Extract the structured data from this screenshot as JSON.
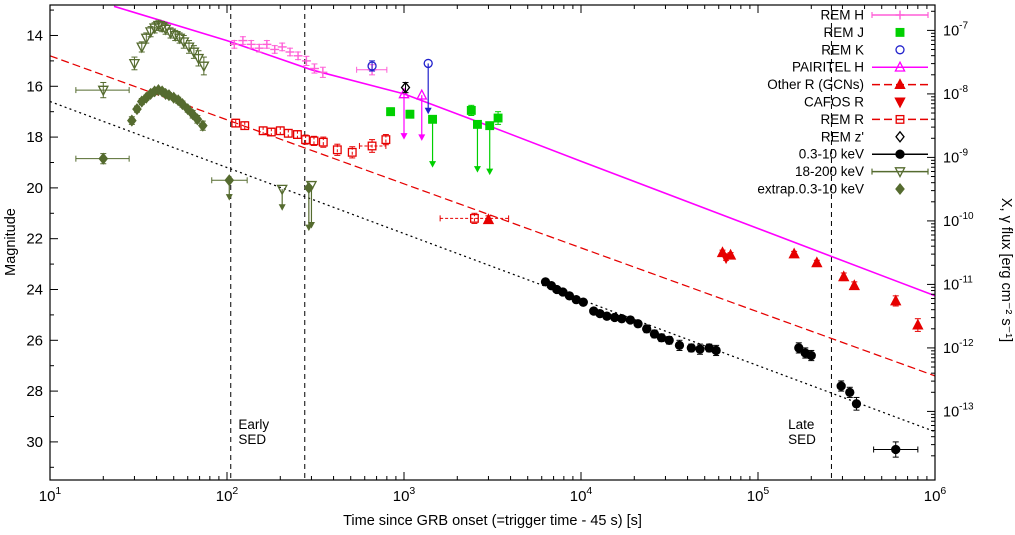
{
  "chart_data": {
    "type": "scatter",
    "title": "",
    "xlabel": "Time since GRB onset (=trigger time - 45 s) [s]",
    "ylabel_left": "Magnitude",
    "ylabel_right": "X, γ flux [erg cm⁻² s⁻¹]",
    "x_log_range": [
      1,
      6
    ],
    "y_mag_range": [
      12.8,
      31.5
    ],
    "x_tick_exponents": [
      1,
      2,
      3,
      4,
      5,
      6
    ],
    "y_ticks": [
      14,
      16,
      18,
      20,
      22,
      24,
      26,
      28,
      30
    ],
    "right_axis": {
      "tick_exponents": [
        -7,
        -8,
        -9,
        -10,
        -11,
        -12,
        -13
      ],
      "mag_ref": 13.8,
      "mag_per_decade": 2.5
    },
    "vlines": [
      {
        "t": 105
      },
      {
        "t": 275
      },
      {
        "t": 260000
      }
    ],
    "annotations": [
      {
        "lines": [
          "Early",
          "SED"
        ],
        "t": 116,
        "mag": 29.5
      },
      {
        "lines": [
          "Late",
          "SED"
        ],
        "t": 148000,
        "mag": 29.5
      }
    ],
    "fit_lines": [
      {
        "name": "H-band power-law fit",
        "color": "#ff00ff",
        "style": "solid",
        "points": [
          [
            23,
            12.85
          ],
          [
            100,
            14.2
          ],
          [
            300,
            15.35
          ],
          [
            1000,
            16.3
          ],
          [
            3000,
            17.55
          ],
          [
            10000,
            18.95
          ],
          [
            100000,
            21.6
          ],
          [
            1000000,
            24.25
          ]
        ]
      },
      {
        "name": "R-band power-law fit",
        "color": "#e60000",
        "style": "dashed",
        "points": [
          [
            10,
            14.8
          ],
          [
            1000000,
            27.4
          ]
        ]
      },
      {
        "name": "X-ray extrapolation",
        "color": "#000000",
        "style": "dotted",
        "points": [
          [
            10,
            16.6
          ],
          [
            1000000,
            29.6
          ]
        ]
      }
    ],
    "series": [
      {
        "name": "REM H",
        "slug": "rem-h",
        "marker": "plus",
        "filled": false,
        "color": "#ff5fd7",
        "err": "solid",
        "points": [
          [
            110,
            14.35,
            0.15
          ],
          [
            123,
            14.2,
            0.15
          ],
          [
            137,
            14.35,
            0.15
          ],
          [
            152,
            14.5,
            0.15
          ],
          [
            168,
            14.35,
            0.15
          ],
          [
            186,
            14.55,
            0.15
          ],
          [
            205,
            14.45,
            0.15
          ],
          [
            227,
            14.65,
            0.15
          ],
          [
            252,
            14.8,
            0.15
          ],
          [
            281,
            15.0,
            0.18
          ],
          [
            312,
            15.3,
            0.18
          ],
          [
            348,
            15.45,
            0.2
          ],
          [
            660,
            15.35,
            0.2,
            540,
            800
          ]
        ],
        "upper_limits": []
      },
      {
        "name": "REM J",
        "slug": "rem-j",
        "marker": "square",
        "filled": true,
        "color": "#00d000",
        "err": "solid",
        "points": [
          [
            840,
            17.0,
            0.15
          ],
          [
            1080,
            17.1,
            0.15
          ],
          [
            2400,
            16.95,
            0.2
          ],
          [
            3400,
            17.25,
            0.25
          ]
        ],
        "upper_limits": [
          [
            1450,
            17.3,
            19.2
          ],
          [
            2600,
            17.5,
            19.4
          ],
          [
            3050,
            17.55,
            19.5
          ]
        ]
      },
      {
        "name": "REM K",
        "slug": "rem-k",
        "marker": "circle",
        "filled": false,
        "color": "#2121cc",
        "err": "solid",
        "points": [
          [
            660,
            15.2,
            0.2
          ]
        ],
        "upper_limits": [
          [
            1370,
            15.1,
            17.1
          ]
        ]
      },
      {
        "name": "PAIRITEL H",
        "slug": "pairitel-h",
        "marker": "triangle-up",
        "filled": false,
        "color": "#ff00ff",
        "err": "solid",
        "points": [],
        "upper_limits": [
          [
            1000,
            16.3,
            18.1
          ],
          [
            1260,
            16.35,
            18.15
          ]
        ]
      },
      {
        "name": "Other R (GCNs)",
        "slug": "other-r-gcns",
        "marker": "triangle-up",
        "filled": true,
        "color": "#e60000",
        "err": "solid",
        "points": [
          [
            3000,
            21.25,
            0.15
          ],
          [
            63000,
            22.55,
            0.1
          ],
          [
            70000,
            22.65,
            0.1
          ],
          [
            160000,
            22.6,
            0.1
          ],
          [
            215000,
            22.95,
            0.1
          ],
          [
            305000,
            23.5,
            0.15
          ],
          [
            350000,
            23.85,
            0.15
          ],
          [
            600000,
            24.45,
            0.2
          ],
          [
            800000,
            25.4,
            0.25
          ]
        ],
        "upper_limits": []
      },
      {
        "name": "CAFOS R",
        "slug": "cafos-r",
        "marker": "triangle-down",
        "filled": true,
        "color": "#e60000",
        "err": "solid",
        "points": [
          [
            66000,
            22.75,
            0.1
          ]
        ],
        "upper_limits": []
      },
      {
        "name": "REM R",
        "slug": "rem-r",
        "marker": "square",
        "filled": false,
        "color": "#e60000",
        "err": "dashed",
        "points": [
          [
            112,
            17.45,
            0.15
          ],
          [
            126,
            17.55,
            0.15
          ],
          [
            160,
            17.75,
            0.15
          ],
          [
            178,
            17.8,
            0.15
          ],
          [
            200,
            17.75,
            0.15
          ],
          [
            222,
            17.85,
            0.15
          ],
          [
            250,
            17.9,
            0.15
          ],
          [
            278,
            18.1,
            0.18
          ],
          [
            310,
            18.15,
            0.18
          ],
          [
            350,
            18.2,
            0.2
          ],
          [
            420,
            18.5,
            0.22
          ],
          [
            510,
            18.6,
            0.22
          ],
          [
            660,
            18.35,
            0.25,
            560,
            790
          ],
          [
            790,
            18.1,
            0.2
          ],
          [
            2500,
            21.2,
            0.2,
            1600,
            3900
          ]
        ],
        "upper_limits": []
      },
      {
        "name": "REM z'",
        "slug": "rem-z",
        "marker": "diamond",
        "filled": false,
        "color": "#000000",
        "err": "solid",
        "points": [
          [
            1020,
            16.05,
            0.2
          ]
        ],
        "upper_limits": []
      },
      {
        "name": "0.3-10 keV",
        "slug": "xray-03-10-kev",
        "marker": "circle",
        "filled": true,
        "color": "#000000",
        "err": "solid",
        "points": [
          [
            6300,
            23.7,
            0.1
          ],
          [
            6800,
            23.85,
            0.1
          ],
          [
            7300,
            24.0,
            0.1
          ],
          [
            7900,
            24.1,
            0.1
          ],
          [
            8600,
            24.25,
            0.1
          ],
          [
            9400,
            24.4,
            0.12
          ],
          [
            10300,
            24.5,
            0.12
          ],
          [
            11800,
            24.85,
            0.12
          ],
          [
            12800,
            24.95,
            0.12
          ],
          [
            14000,
            25.05,
            0.12
          ],
          [
            15500,
            25.1,
            0.12
          ],
          [
            17000,
            25.15,
            0.12
          ],
          [
            19000,
            25.2,
            0.12
          ],
          [
            21000,
            25.35,
            0.12
          ],
          [
            23500,
            25.55,
            0.15
          ],
          [
            26000,
            25.75,
            0.15
          ],
          [
            28500,
            25.9,
            0.15
          ],
          [
            31500,
            26.0,
            0.15
          ],
          [
            36000,
            26.2,
            0.2
          ],
          [
            42000,
            26.3,
            0.15
          ],
          [
            47000,
            26.35,
            0.2
          ],
          [
            53000,
            26.3,
            0.15
          ],
          [
            58000,
            26.4,
            0.2
          ],
          [
            170000,
            26.3,
            0.2
          ],
          [
            185000,
            26.5,
            0.2
          ],
          [
            200000,
            26.6,
            0.2
          ],
          [
            295000,
            27.8,
            0.2
          ],
          [
            330000,
            28.05,
            0.2
          ],
          [
            360000,
            28.5,
            0.25
          ],
          [
            600000,
            30.3,
            0.3,
            450000,
            800000
          ]
        ],
        "upper_limits": []
      },
      {
        "name": "18-200 keV",
        "slug": "gamma-18-200-kev",
        "marker": "triangle-down",
        "filled": false,
        "color": "#556b2f",
        "err": "solid",
        "points": [
          [
            20,
            16.15,
            0.3,
            14,
            28
          ],
          [
            30,
            15.1,
            0.25
          ],
          [
            33,
            14.45,
            0.2
          ],
          [
            35,
            14.1,
            0.2
          ],
          [
            37,
            13.85,
            0.2
          ],
          [
            39,
            13.7,
            0.2
          ],
          [
            41,
            13.6,
            0.2
          ],
          [
            43,
            13.65,
            0.2
          ],
          [
            45,
            13.75,
            0.2
          ],
          [
            48,
            13.9,
            0.2
          ],
          [
            51,
            14.0,
            0.2
          ],
          [
            54,
            14.1,
            0.2
          ],
          [
            57,
            14.25,
            0.25
          ],
          [
            61,
            14.45,
            0.25
          ],
          [
            65,
            14.65,
            0.25
          ],
          [
            69,
            14.9,
            0.3
          ],
          [
            74,
            15.2,
            0.35
          ]
        ],
        "upper_limits": [
          [
            205,
            20.05,
            20.9
          ],
          [
            300,
            19.9,
            21.6
          ]
        ]
      },
      {
        "name": "extrap.0.3-10 keV",
        "slug": "extrap-xray",
        "marker": "diamond",
        "filled": true,
        "color": "#556b2f",
        "err": "solid",
        "points": [
          [
            20,
            18.85,
            0.2,
            14,
            28
          ],
          [
            29,
            17.35,
            0.15
          ],
          [
            31,
            16.9,
            0.12
          ],
          [
            33,
            16.6,
            0.12
          ],
          [
            35,
            16.45,
            0.1
          ],
          [
            37,
            16.3,
            0.1
          ],
          [
            39,
            16.2,
            0.1
          ],
          [
            41,
            16.15,
            0.1
          ],
          [
            43,
            16.2,
            0.1
          ],
          [
            45,
            16.3,
            0.1
          ],
          [
            47,
            16.35,
            0.1
          ],
          [
            50,
            16.45,
            0.1
          ],
          [
            53,
            16.55,
            0.12
          ],
          [
            56,
            16.7,
            0.12
          ],
          [
            60,
            16.9,
            0.12
          ],
          [
            64,
            17.1,
            0.15
          ],
          [
            68,
            17.3,
            0.15
          ],
          [
            73,
            17.55,
            0.18
          ]
        ],
        "upper_limits": [
          [
            103,
            19.7,
            20.5,
            82,
            130
          ],
          [
            290,
            20.0,
            21.7
          ]
        ]
      }
    ],
    "legend": [
      {
        "label": "REM H",
        "slug": "rem-h",
        "marker": "plus",
        "filled": false,
        "color": "#ff5fd7",
        "line": "errorbar"
      },
      {
        "label": "REM J",
        "slug": "rem-j",
        "marker": "square",
        "filled": true,
        "color": "#00d000",
        "line": ""
      },
      {
        "label": "REM K",
        "slug": "rem-k",
        "marker": "circle",
        "filled": false,
        "color": "#2121cc",
        "line": ""
      },
      {
        "label": "PAIRITEL H",
        "slug": "pairitel-h",
        "marker": "triangle-up",
        "filled": false,
        "color": "#ff00ff",
        "line": "solid"
      },
      {
        "label": "Other R (GCNs)",
        "slug": "other-r-gcns",
        "marker": "triangle-up",
        "filled": true,
        "color": "#e60000",
        "line": "dashed"
      },
      {
        "label": "CAFOS R",
        "slug": "cafos-r",
        "marker": "triangle-down",
        "filled": true,
        "color": "#e60000",
        "line": ""
      },
      {
        "label": "REM R",
        "slug": "rem-r",
        "marker": "square",
        "filled": false,
        "color": "#e60000",
        "line": "dashed"
      },
      {
        "label": "REM z'",
        "slug": "rem-z",
        "marker": "diamond",
        "filled": false,
        "color": "#000000",
        "line": ""
      },
      {
        "label": "0.3-10 keV",
        "slug": "xray-03-10-kev",
        "marker": "circle",
        "filled": true,
        "color": "#000000",
        "line": "solid"
      },
      {
        "label": "18-200 keV",
        "slug": "gamma-18-200-kev",
        "marker": "triangle-down",
        "filled": false,
        "color": "#556b2f",
        "line": "errorbar"
      },
      {
        "label": "extrap.0.3-10 keV",
        "slug": "extrap-xray",
        "marker": "diamond",
        "filled": true,
        "color": "#556b2f",
        "line": ""
      }
    ]
  }
}
